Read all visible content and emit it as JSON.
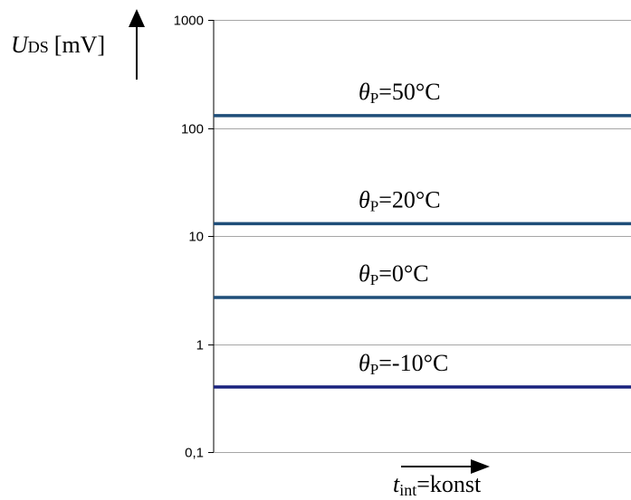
{
  "chart_data": {
    "type": "line",
    "y_scale": "log",
    "ylim": [
      0.1,
      1000
    ],
    "y_ticks": [
      {
        "value": 1000,
        "label": "1000"
      },
      {
        "value": 100,
        "label": "100"
      },
      {
        "value": 10,
        "label": "10"
      },
      {
        "value": 1,
        "label": "1"
      },
      {
        "value": 0.1,
        "label": "0,1"
      }
    ],
    "grid": true,
    "ylabel": {
      "symbol": "U",
      "subscript": "DS",
      "unit": "[mV]"
    },
    "xlabel": {
      "symbol": "t",
      "subscript": "int",
      "text": "=konst"
    },
    "series": [
      {
        "name": "θP=50°C",
        "label_symbol": "θ",
        "label_subscript": "P",
        "label_text": "=50°C",
        "value": 130,
        "color": "#1f4e79"
      },
      {
        "name": "θP=20°C",
        "label_symbol": "θ",
        "label_subscript": "P",
        "label_text": "=20°C",
        "value": 13,
        "color": "#1f4e79"
      },
      {
        "name": "θP=0°C",
        "label_symbol": "θ",
        "label_subscript": "P",
        "label_text": "=0°C",
        "value": 2.7,
        "color": "#1f4e79"
      },
      {
        "name": "θP=-10°C",
        "label_symbol": "θ",
        "label_subscript": "P",
        "label_text": "=-10°C",
        "value": 0.4,
        "color": "#1a237e"
      }
    ]
  }
}
